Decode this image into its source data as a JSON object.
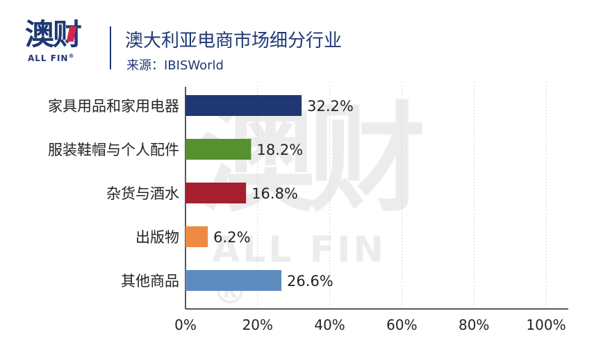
{
  "header": {
    "logo_cn": "澳财",
    "logo_en": "ALL FIN",
    "logo_reg": "®",
    "title": "澳大利亚电商市场细分行业",
    "source": "来源：IBISWorld"
  },
  "watermark": {
    "cn": "澳财",
    "en": "ALL FIN ®"
  },
  "chart_data": {
    "type": "bar",
    "orientation": "horizontal",
    "categories": [
      "家具用品和家用电器",
      "服装鞋帽与个人配件",
      "杂货与酒水",
      "出版物",
      "其他商品"
    ],
    "values": [
      32.2,
      18.2,
      16.8,
      6.2,
      26.6
    ],
    "value_labels": [
      "32.2%",
      "18.2%",
      "16.8%",
      "6.2%",
      "26.6%"
    ],
    "colors": [
      "#1f3873",
      "#55912f",
      "#a51f2c",
      "#ef8a44",
      "#5e8bbd"
    ],
    "xlim": [
      0,
      100
    ],
    "xticks": [
      0,
      20,
      40,
      60,
      80,
      100
    ],
    "xtick_labels": [
      "0%",
      "20%",
      "40%",
      "60%",
      "80%",
      "100%"
    ],
    "grid": "vertical-dotted",
    "title": "澳大利亚电商市场细分行业",
    "xlabel": "",
    "ylabel": ""
  }
}
